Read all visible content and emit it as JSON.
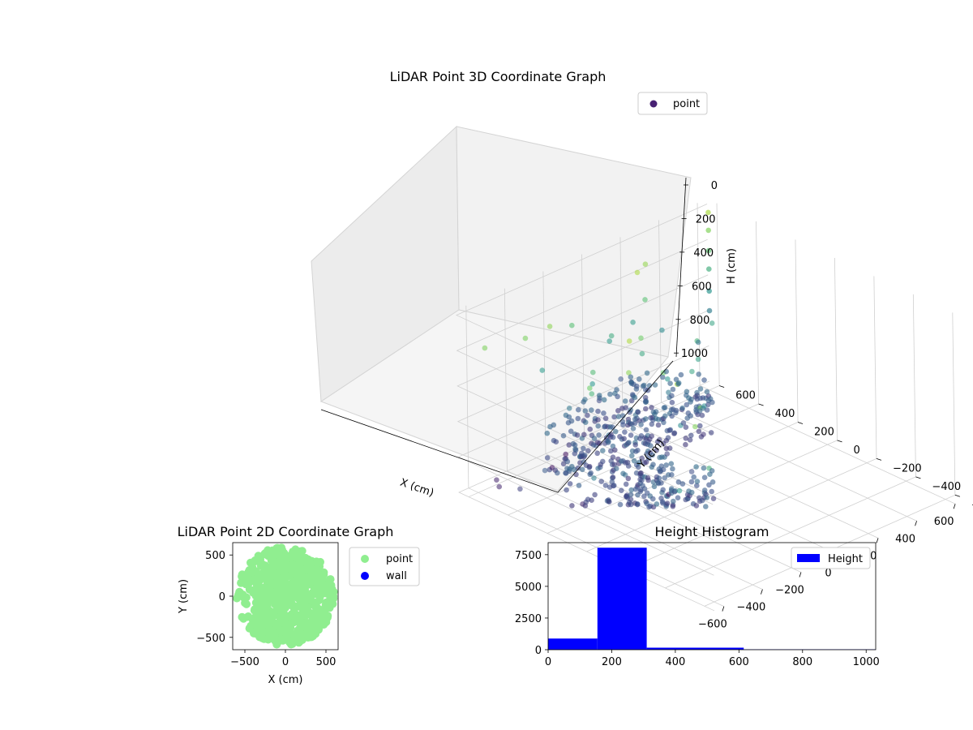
{
  "chart_data": [
    {
      "type": "scatter3d",
      "title": "LiDAR Point 3D Coordinate Graph",
      "xlabel": "X (cm)",
      "ylabel": "Y (cm)",
      "zlabel": "H (cm)",
      "xlim": [
        -650,
        650
      ],
      "ylim": [
        -650,
        650
      ],
      "zlim": [
        0,
        1030
      ],
      "xticks": [
        -600,
        -400,
        -200,
        0,
        200,
        400,
        600
      ],
      "yticks": [
        -600,
        -400,
        -200,
        0,
        200,
        400,
        600
      ],
      "zticks": [
        0,
        200,
        400,
        600,
        800,
        1000
      ],
      "legend": [
        "point"
      ],
      "legend_position": "top-right",
      "colormap": "viridis",
      "series": [
        {
          "name": "point",
          "description_points": "dense ring of floor points (H≈200) within radius ~600 plus sparse wall points up to H≈1000"
        }
      ]
    },
    {
      "type": "scatter",
      "title": "LiDAR Point 2D Coordinate Graph",
      "xlabel": "X (cm)",
      "ylabel": "Y (cm)",
      "xlim": [
        -650,
        650
      ],
      "ylim": [
        -650,
        650
      ],
      "xticks": [
        -500,
        0,
        500
      ],
      "yticks": [
        -500,
        0,
        500
      ],
      "legend": [
        "point",
        "wall"
      ],
      "legend_position": "outside-right",
      "series": [
        {
          "name": "point",
          "color": "#90ee90"
        },
        {
          "name": "wall",
          "color": "#0000ff"
        }
      ]
    },
    {
      "type": "bar",
      "title": "Height Histogram",
      "legend": [
        "Height"
      ],
      "legend_position": "top-right",
      "color": "#0000ff",
      "xlim": [
        0,
        1030
      ],
      "ylim": [
        0,
        8450
      ],
      "xticks": [
        0,
        200,
        400,
        600,
        800,
        1000
      ],
      "yticks": [
        0,
        2500,
        5000,
        7500
      ],
      "bins": [
        {
          "start": 0,
          "end": 155,
          "count": 880
        },
        {
          "start": 155,
          "end": 310,
          "count": 8050
        },
        {
          "start": 310,
          "end": 615,
          "count": 160
        },
        {
          "start": 615,
          "end": 1030,
          "count": 30
        }
      ]
    }
  ]
}
